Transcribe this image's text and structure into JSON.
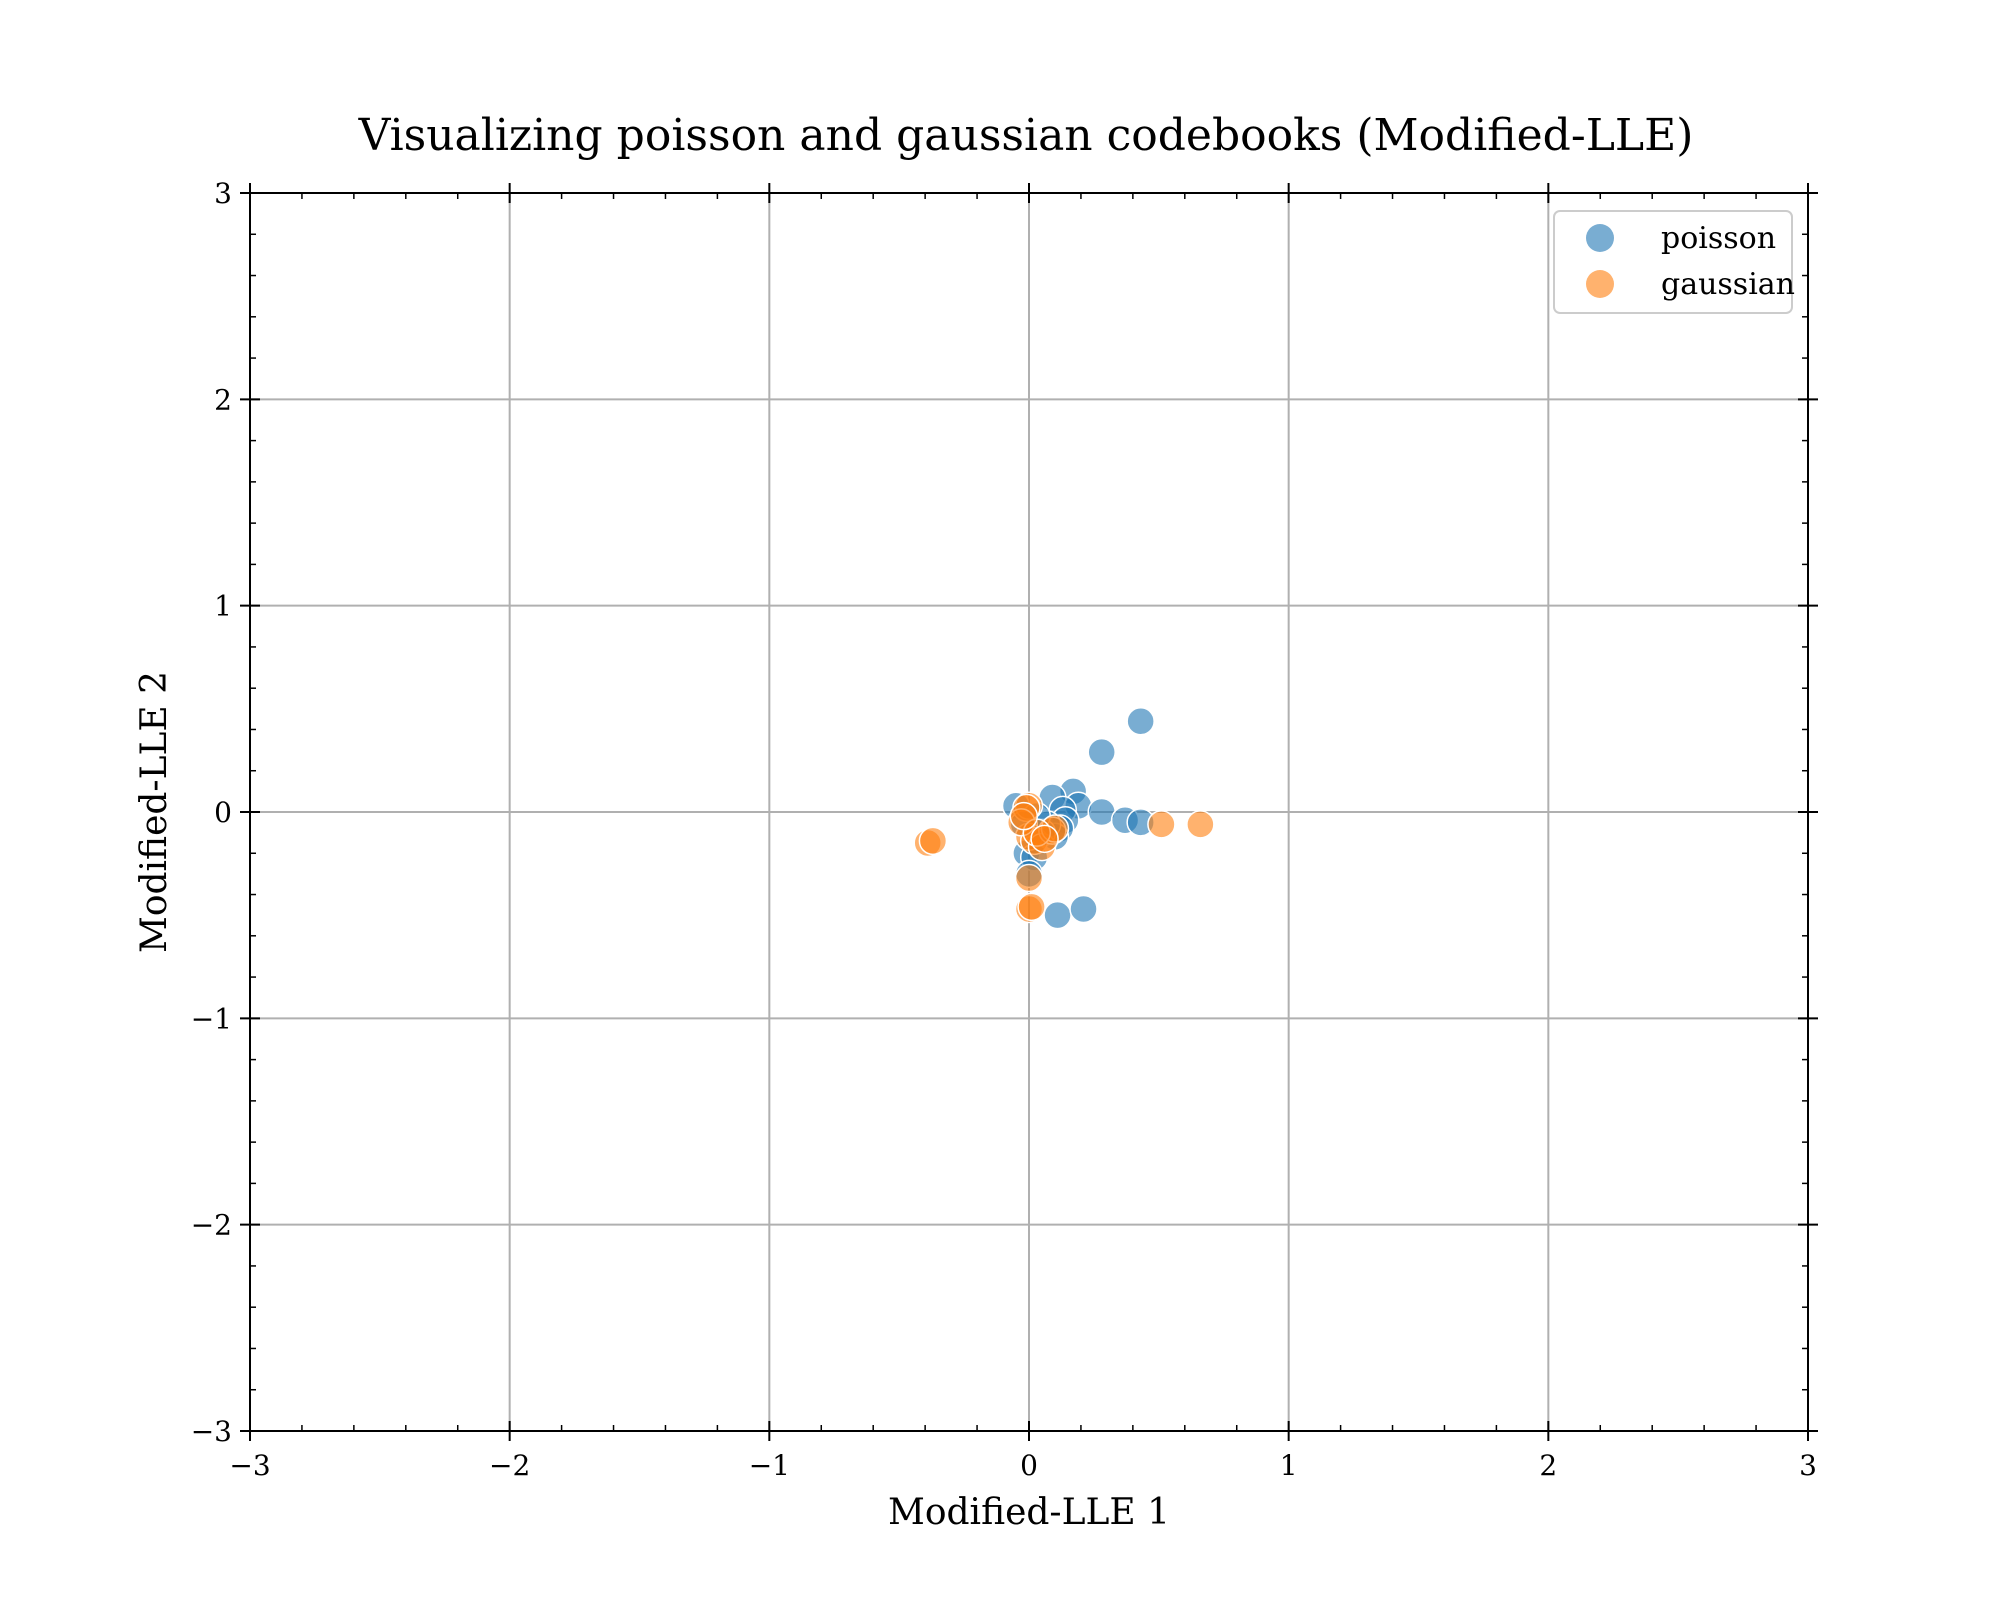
{
  "chart_data": {
    "type": "scatter",
    "title": "Visualizing poisson and gaussian codebooks (Modified-LLE)",
    "xlabel": "Modified-LLE 1",
    "ylabel": "Modified-LLE 2",
    "xlim": [
      -3,
      3
    ],
    "ylim": [
      -3,
      3
    ],
    "xticks": [
      -3,
      -2,
      -1,
      0,
      1,
      2,
      3
    ],
    "yticks": [
      -3,
      -2,
      -1,
      0,
      1,
      2,
      3
    ],
    "xtick_labels": [
      "−3",
      "−2",
      "−1",
      "0",
      "1",
      "2",
      "3"
    ],
    "ytick_labels": [
      "−3",
      "−2",
      "−1",
      "0",
      "1",
      "2",
      "3"
    ],
    "grid": true,
    "legend_position": "top-right",
    "series": [
      {
        "name": "poisson",
        "color": "#1f77b4",
        "points": [
          [
            0.43,
            0.44
          ],
          [
            0.28,
            0.29
          ],
          [
            0.17,
            0.1
          ],
          [
            0.09,
            0.07
          ],
          [
            0.19,
            0.03
          ],
          [
            0.13,
            0.01
          ],
          [
            0.28,
            0.0
          ],
          [
            -0.05,
            0.03
          ],
          [
            0.37,
            -0.04
          ],
          [
            0.43,
            -0.05
          ],
          [
            0.14,
            -0.04
          ],
          [
            0.12,
            -0.08
          ],
          [
            0.1,
            -0.12
          ],
          [
            0.07,
            -0.06
          ],
          [
            0.05,
            -0.1
          ],
          [
            -0.01,
            -0.2
          ],
          [
            0.02,
            -0.22
          ],
          [
            0.0,
            -0.3
          ],
          [
            0.11,
            -0.5
          ],
          [
            0.21,
            -0.47
          ],
          [
            0.03,
            -0.02
          ],
          [
            -0.02,
            -0.06
          ]
        ]
      },
      {
        "name": "gaussian",
        "color": "#ff7f0e",
        "points": [
          [
            -0.39,
            -0.15
          ],
          [
            -0.37,
            -0.14
          ],
          [
            0.51,
            -0.06
          ],
          [
            0.66,
            -0.06
          ],
          [
            0.0,
            0.03
          ],
          [
            -0.01,
            0.02
          ],
          [
            0.0,
            -0.12
          ],
          [
            0.02,
            -0.14
          ],
          [
            -0.03,
            -0.05
          ],
          [
            0.05,
            -0.17
          ],
          [
            0.09,
            -0.09
          ],
          [
            0.1,
            -0.08
          ],
          [
            0.0,
            -0.32
          ],
          [
            0.0,
            -0.47
          ],
          [
            0.01,
            -0.46
          ],
          [
            0.03,
            -0.1
          ],
          [
            -0.02,
            -0.02
          ],
          [
            0.06,
            -0.13
          ]
        ]
      }
    ]
  }
}
